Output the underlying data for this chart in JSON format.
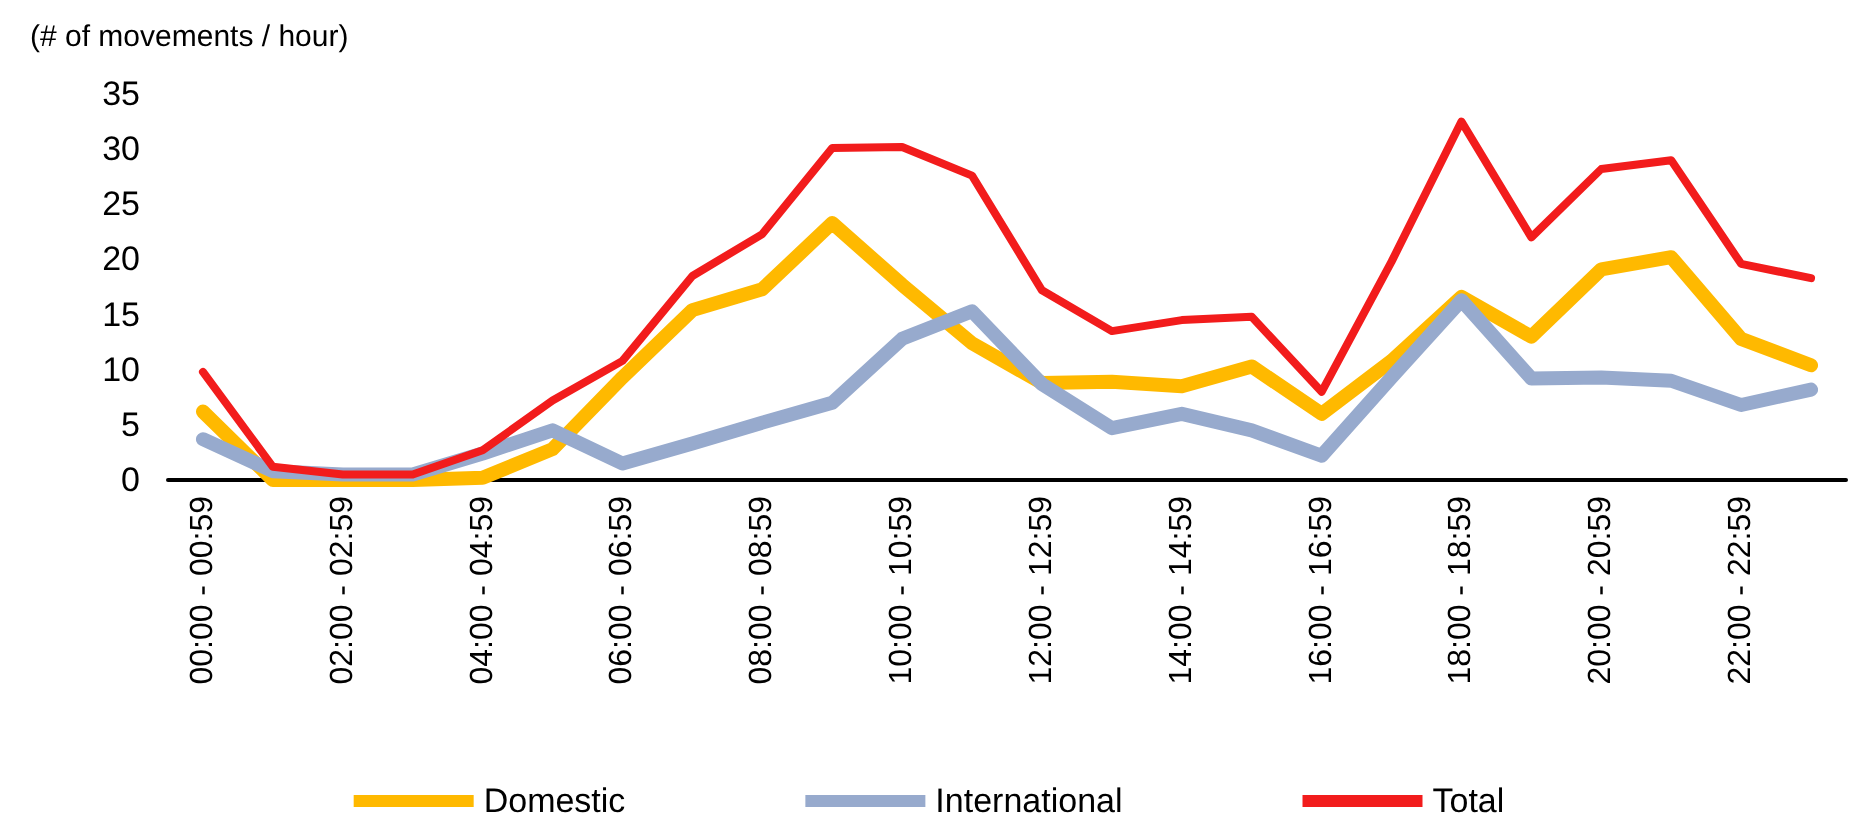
{
  "chart_data": {
    "type": "line",
    "ylabel": "(# of movements / hour)",
    "categories": [
      "00:00 - 00:59",
      null,
      "02:00 - 02:59",
      null,
      "04:00 - 04:59",
      null,
      "06:00 - 06:59",
      null,
      "08:00 - 08:59",
      null,
      "10:00 - 10:59",
      null,
      "12:00 - 12:59",
      null,
      "14:00 - 14:59",
      null,
      "16:00 - 16:59",
      null,
      "18:00 - 18:59",
      null,
      "20:00 - 20:59",
      null,
      "22:00 - 22:59",
      null
    ],
    "series": [
      {
        "name": "Domestic",
        "color": "#ffb900",
        "values": [
          6.2,
          0,
          0,
          0,
          0.2,
          2.8,
          9.3,
          15.4,
          17.3,
          23.3,
          17.7,
          12.4,
          8.8,
          8.9,
          8.5,
          10.3,
          6,
          10.8,
          16.6,
          13,
          19.1,
          20.2,
          12.8,
          10.4
        ]
      },
      {
        "name": "International",
        "color": "#97aacd",
        "values": [
          3.7,
          0.8,
          0.5,
          0.5,
          2.4,
          4.5,
          1.5,
          3.3,
          5.2,
          7,
          12.8,
          15.3,
          8.7,
          4.7,
          6,
          4.5,
          2.2,
          9.3,
          16.3,
          9.2,
          9.3,
          9,
          6.8,
          8.2
        ]
      },
      {
        "name": "Total",
        "color": "#f21c1c",
        "values": [
          9.8,
          1.2,
          0.5,
          0.5,
          2.7,
          7.2,
          10.8,
          18.5,
          22.3,
          30.1,
          30.2,
          27.6,
          17.2,
          13.5,
          14.5,
          14.8,
          8,
          19.8,
          32.5,
          22,
          28.2,
          29,
          19.6,
          18.3
        ]
      }
    ],
    "ylim": [
      0,
      35
    ],
    "yticks": [
      0,
      5,
      10,
      15,
      20,
      25,
      30,
      35
    ],
    "grid": false,
    "legend": "bottom",
    "marker": "none",
    "line_style": "solid"
  }
}
